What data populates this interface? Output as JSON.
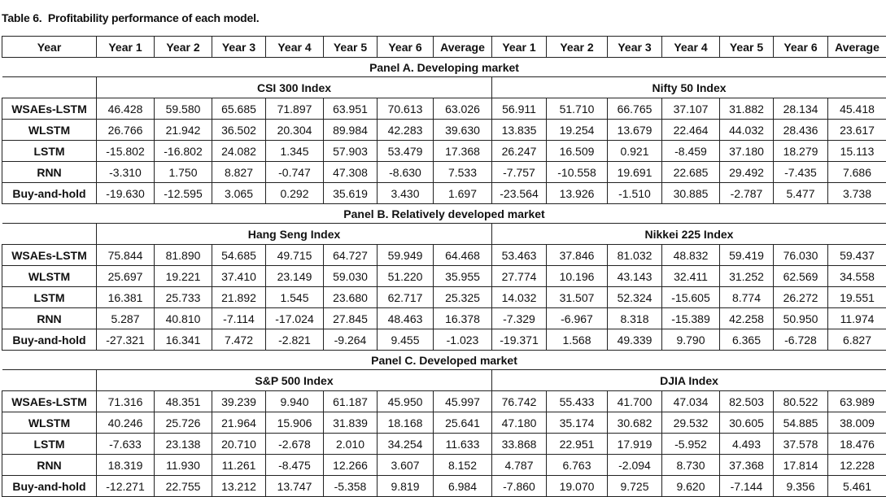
{
  "caption": "Table 6.  Profitability performance of each model.",
  "header": [
    "Year",
    "Year 1",
    "Year 2",
    "Year 3",
    "Year 4",
    "Year 5",
    "Year 6",
    "Average",
    "Year 1",
    "Year 2",
    "Year 3",
    "Year 4",
    "Year 5",
    "Year 6",
    "Average"
  ],
  "panels": [
    {
      "title": "Panel A. Developing market",
      "left_index": "CSI 300 Index",
      "right_index": "Nifty 50 Index",
      "rows": [
        {
          "model": "WSAEs-LSTM",
          "values": [
            "46.428",
            "59.580",
            "65.685",
            "71.897",
            "63.951",
            "70.613",
            "63.026",
            "56.911",
            "51.710",
            "66.765",
            "37.107",
            "31.882",
            "28.134",
            "45.418"
          ]
        },
        {
          "model": "WLSTM",
          "values": [
            "26.766",
            "21.942",
            "36.502",
            "20.304",
            "89.984",
            "42.283",
            "39.630",
            "13.835",
            "19.254",
            "13.679",
            "22.464",
            "44.032",
            "28.436",
            "23.617"
          ]
        },
        {
          "model": "LSTM",
          "values": [
            "-15.802",
            "-16.802",
            "24.082",
            "1.345",
            "57.903",
            "53.479",
            "17.368",
            "26.247",
            "16.509",
            "0.921",
            "-8.459",
            "37.180",
            "18.279",
            "15.113"
          ]
        },
        {
          "model": "RNN",
          "values": [
            "-3.310",
            "1.750",
            "8.827",
            "-0.747",
            "47.308",
            "-8.630",
            "7.533",
            "-7.757",
            "-10.558",
            "19.691",
            "22.685",
            "29.492",
            "-7.435",
            "7.686"
          ]
        },
        {
          "model": "Buy-and-hold",
          "values": [
            "-19.630",
            "-12.595",
            "3.065",
            "0.292",
            "35.619",
            "3.430",
            "1.697",
            "-23.564",
            "13.926",
            "-1.510",
            "30.885",
            "-2.787",
            "5.477",
            "3.738"
          ]
        }
      ]
    },
    {
      "title": "Panel B. Relatively developed market",
      "left_index": "Hang Seng Index",
      "right_index": "Nikkei 225 Index",
      "rows": [
        {
          "model": "WSAEs-LSTM",
          "values": [
            "75.844",
            "81.890",
            "54.685",
            "49.715",
            "64.727",
            "59.949",
            "64.468",
            "53.463",
            "37.846",
            "81.032",
            "48.832",
            "59.419",
            "76.030",
            "59.437"
          ]
        },
        {
          "model": "WLSTM",
          "values": [
            "25.697",
            "19.221",
            "37.410",
            "23.149",
            "59.030",
            "51.220",
            "35.955",
            "27.774",
            "10.196",
            "43.143",
            "32.411",
            "31.252",
            "62.569",
            "34.558"
          ]
        },
        {
          "model": "LSTM",
          "values": [
            "16.381",
            "25.733",
            "21.892",
            "1.545",
            "23.680",
            "62.717",
            "25.325",
            "14.032",
            "31.507",
            "52.324",
            "-15.605",
            "8.774",
            "26.272",
            "19.551"
          ]
        },
        {
          "model": "RNN",
          "values": [
            "5.287",
            "40.810",
            "-7.114",
            "-17.024",
            "27.845",
            "48.463",
            "16.378",
            "-7.329",
            "-6.967",
            "8.318",
            "-15.389",
            "42.258",
            "50.950",
            "11.974"
          ]
        },
        {
          "model": "Buy-and-hold",
          "values": [
            "-27.321",
            "16.341",
            "7.472",
            "-2.821",
            "-9.264",
            "9.455",
            "-1.023",
            "-19.371",
            "1.568",
            "49.339",
            "9.790",
            "6.365",
            "-6.728",
            "6.827"
          ]
        }
      ]
    },
    {
      "title": "Panel C. Developed market",
      "left_index": "S&P 500 Index",
      "right_index": "DJIA Index",
      "rows": [
        {
          "model": "WSAEs-LSTM",
          "values": [
            "71.316",
            "48.351",
            "39.239",
            "9.940",
            "61.187",
            "45.950",
            "45.997",
            "76.742",
            "55.433",
            "41.700",
            "47.034",
            "82.503",
            "80.522",
            "63.989"
          ]
        },
        {
          "model": "WLSTM",
          "values": [
            "40.246",
            "25.726",
            "21.964",
            "15.906",
            "31.839",
            "18.168",
            "25.641",
            "47.180",
            "35.174",
            "30.682",
            "29.532",
            "30.605",
            "54.885",
            "38.009"
          ]
        },
        {
          "model": "LSTM",
          "values": [
            "-7.633",
            "23.138",
            "20.710",
            "-2.678",
            "2.010",
            "34.254",
            "11.633",
            "33.868",
            "22.951",
            "17.919",
            "-5.952",
            "4.493",
            "37.578",
            "18.476"
          ]
        },
        {
          "model": "RNN",
          "values": [
            "18.319",
            "11.930",
            "11.261",
            "-8.475",
            "12.266",
            "3.607",
            "8.152",
            "4.787",
            "6.763",
            "-2.094",
            "8.730",
            "37.368",
            "17.814",
            "12.228"
          ]
        },
        {
          "model": "Buy-and-hold",
          "values": [
            "-12.271",
            "22.755",
            "13.212",
            "13.747",
            "-5.358",
            "9.819",
            "6.984",
            "-7.860",
            "19.070",
            "9.725",
            "9.620",
            "-7.144",
            "9.356",
            "5.461"
          ]
        }
      ]
    }
  ]
}
